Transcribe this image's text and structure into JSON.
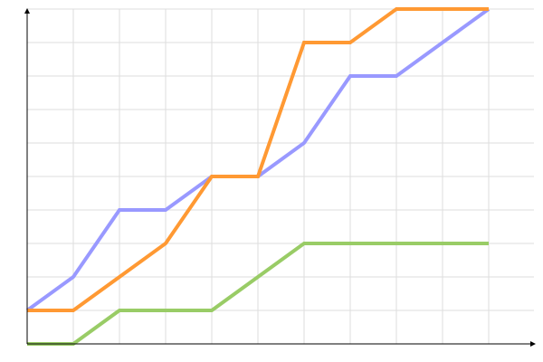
{
  "chart_data": {
    "type": "line",
    "title": "",
    "xlabel": "",
    "ylabel": "",
    "x": [
      0,
      1,
      2,
      3,
      4,
      5,
      6,
      7,
      8,
      9,
      10
    ],
    "xlim": [
      0,
      11
    ],
    "ylim": [
      0,
      10
    ],
    "grid": true,
    "legend": "none",
    "series": [
      {
        "color": "#9999ff",
        "values": [
          1,
          2,
          4,
          4,
          5,
          5,
          6,
          8,
          8,
          9,
          10
        ]
      },
      {
        "color": "#ff9933",
        "values": [
          1,
          1,
          2,
          3,
          5,
          5,
          9,
          9,
          10,
          10,
          10
        ]
      },
      {
        "color": "#99cc66",
        "values": [
          0,
          0,
          1,
          1,
          1,
          2,
          3,
          3,
          3,
          3,
          3
        ]
      }
    ]
  }
}
